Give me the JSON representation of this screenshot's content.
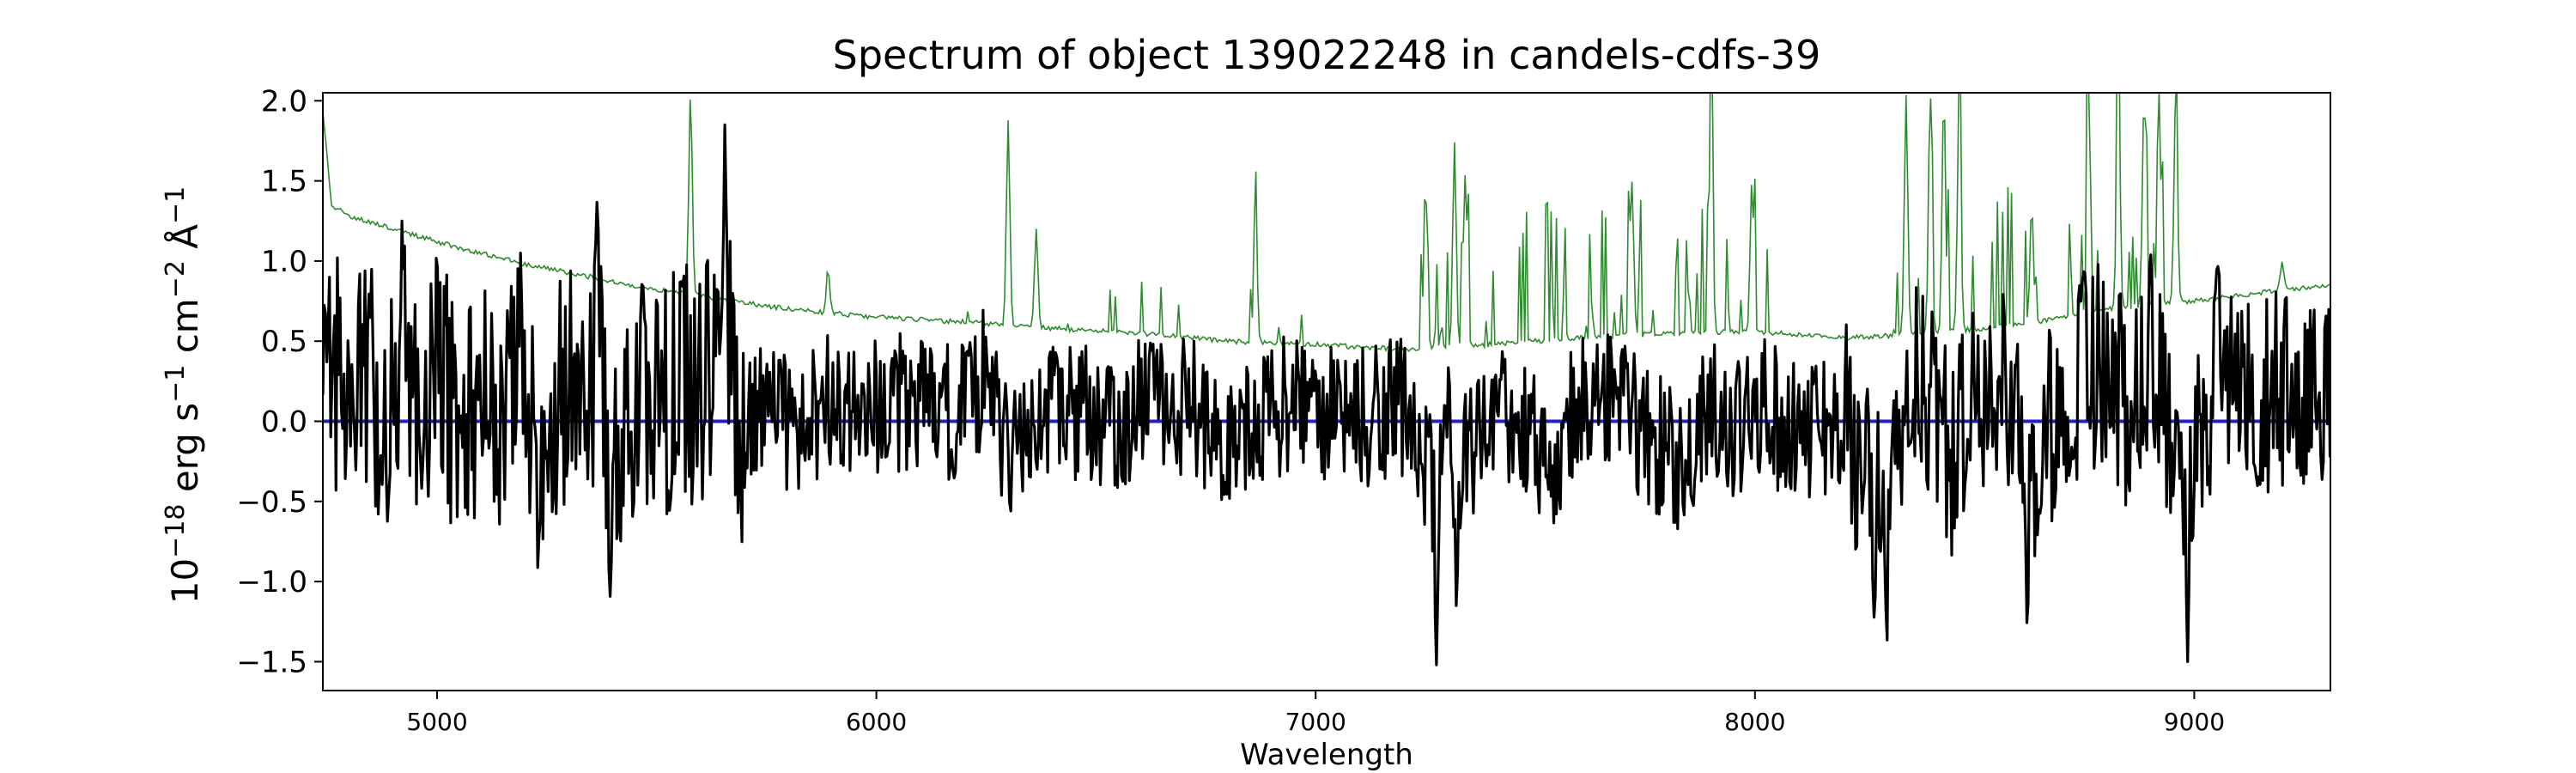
{
  "chart_data": {
    "type": "line",
    "title": "Spectrum of object 139022248 in candels-cdfs-39",
    "xlabel": "Wavelength",
    "ylabel": {
      "base": "10",
      "exp1": "−18",
      "part2": " erg s",
      "exp2": "−1",
      "part3": " cm",
      "exp3": "−2",
      "part4": " Å",
      "exp4": "−1"
    },
    "xlim": [
      4740,
      9310
    ],
    "ylim": [
      -1.68,
      2.05
    ],
    "xticks": [
      5000,
      6000,
      7000,
      8000,
      9000
    ],
    "xtick_labels": [
      "5000",
      "6000",
      "7000",
      "8000",
      "9000"
    ],
    "yticks": [
      -1.5,
      -1.0,
      -0.5,
      0.0,
      0.5,
      1.0,
      1.5,
      2.0
    ],
    "ytick_labels": [
      "−1.5",
      "−1.0",
      "−0.5",
      "0.0",
      "0.5",
      "1.0",
      "1.5",
      "2.0"
    ],
    "grid": false,
    "series": [
      {
        "role": "flux",
        "color": "#000000",
        "anchors": [
          [
            4740,
            0.25
          ],
          [
            4780,
            0.9
          ],
          [
            4810,
            0.3
          ],
          [
            4850,
            0.95
          ],
          [
            4880,
            -0.6
          ],
          [
            4920,
            1.25
          ],
          [
            4960,
            0.2
          ],
          [
            5000,
            1.0
          ],
          [
            5050,
            -0.1
          ],
          [
            5100,
            0.6
          ],
          [
            5150,
            0.2
          ],
          [
            5190,
            1.05
          ],
          [
            5230,
            -0.95
          ],
          [
            5260,
            0.1
          ],
          [
            5300,
            0.7
          ],
          [
            5340,
            -0.3
          ],
          [
            5365,
            1.47
          ],
          [
            5395,
            -1.15
          ],
          [
            5450,
            0.5
          ],
          [
            5500,
            0.1
          ],
          [
            5560,
            0.9
          ],
          [
            5600,
            0.3
          ],
          [
            5655,
            1.85
          ],
          [
            5700,
            -0.5
          ],
          [
            5750,
            0.6
          ],
          [
            5800,
            0.0
          ],
          [
            5900,
            0.3
          ],
          [
            6000,
            0.2
          ],
          [
            6100,
            0.4
          ],
          [
            6200,
            0.1
          ],
          [
            6250,
            0.8
          ],
          [
            6300,
            -0.6
          ],
          [
            6400,
            0.3
          ],
          [
            6500,
            0.0
          ],
          [
            6600,
            0.2
          ],
          [
            6700,
            0.3
          ],
          [
            6800,
            -0.3
          ],
          [
            6900,
            0.3
          ],
          [
            7000,
            0.2
          ],
          [
            7100,
            0.1
          ],
          [
            7200,
            0.2
          ],
          [
            7250,
            -0.8
          ],
          [
            7275,
            -1.52
          ],
          [
            7300,
            0.3
          ],
          [
            7320,
            -1.15
          ],
          [
            7400,
            0.2
          ],
          [
            7500,
            -0.4
          ],
          [
            7550,
            -0.9
          ],
          [
            7600,
            0.5
          ],
          [
            7700,
            0.2
          ],
          [
            7800,
            -0.6
          ],
          [
            7850,
            -0.9
          ],
          [
            7900,
            0.4
          ],
          [
            7950,
            -0.3
          ],
          [
            8000,
            0.3
          ],
          [
            8100,
            -0.2
          ],
          [
            8200,
            0.1
          ],
          [
            8270,
            -1.25
          ],
          [
            8300,
            -1.42
          ],
          [
            8350,
            0.9
          ],
          [
            8400,
            0.3
          ],
          [
            8450,
            -0.7
          ],
          [
            8500,
            0.4
          ],
          [
            8550,
            0.9
          ],
          [
            8600,
            0.3
          ],
          [
            8620,
            -1.28
          ],
          [
            8700,
            0.4
          ],
          [
            8750,
            1.0
          ],
          [
            8800,
            0.9
          ],
          [
            8850,
            0.2
          ],
          [
            8900,
            1.1
          ],
          [
            8950,
            0.0
          ],
          [
            8985,
            -1.5
          ],
          [
            9050,
            1.0
          ],
          [
            9100,
            0.5
          ],
          [
            9150,
            0.3
          ],
          [
            9200,
            0.7
          ],
          [
            9250,
            0.3
          ],
          [
            9310,
            0.6
          ]
        ]
      },
      {
        "role": "continuum",
        "color": "#2e8b2e",
        "anchors": [
          [
            4740,
            1.95
          ],
          [
            4760,
            1.35
          ],
          [
            4800,
            1.28
          ],
          [
            5000,
            1.12
          ],
          [
            5200,
            0.98
          ],
          [
            5500,
            0.82
          ],
          [
            5800,
            0.7
          ],
          [
            6000,
            0.65
          ],
          [
            6200,
            0.62
          ],
          [
            6400,
            0.58
          ],
          [
            6600,
            0.55
          ],
          [
            6800,
            0.5
          ],
          [
            7000,
            0.48
          ],
          [
            7200,
            0.45
          ],
          [
            7400,
            0.48
          ],
          [
            7600,
            0.52
          ],
          [
            7800,
            0.55
          ],
          [
            8000,
            0.56
          ],
          [
            8200,
            0.52
          ],
          [
            8400,
            0.55
          ],
          [
            8600,
            0.6
          ],
          [
            8800,
            0.7
          ],
          [
            9000,
            0.75
          ],
          [
            9200,
            0.82
          ],
          [
            9310,
            0.85
          ]
        ],
        "emission_lines": [
          [
            5577,
            2.05
          ],
          [
            5890,
            0.95
          ],
          [
            6300,
            1.87
          ],
          [
            6364,
            1.2
          ],
          [
            6863,
            1.28
          ],
          [
            7250,
            1.5
          ],
          [
            7316,
            1.73
          ],
          [
            7340,
            1.55
          ],
          [
            7720,
            1.5
          ],
          [
            7900,
            2.05
          ],
          [
            7993,
            1.5
          ],
          [
            8344,
            2.05
          ],
          [
            8399,
            2.05
          ],
          [
            8430,
            2.05
          ],
          [
            8465,
            2.05
          ],
          [
            8630,
            1.35
          ],
          [
            8760,
            2.05
          ],
          [
            8827,
            2.05
          ],
          [
            8886,
            2.05
          ],
          [
            8920,
            2.05
          ],
          [
            8958,
            2.05
          ],
          [
            9200,
            1.0
          ]
        ]
      },
      {
        "role": "zero",
        "color": "#1f1fcc",
        "values": [
          [
            4740,
            0.0
          ],
          [
            9310,
            0.0
          ]
        ]
      }
    ]
  }
}
